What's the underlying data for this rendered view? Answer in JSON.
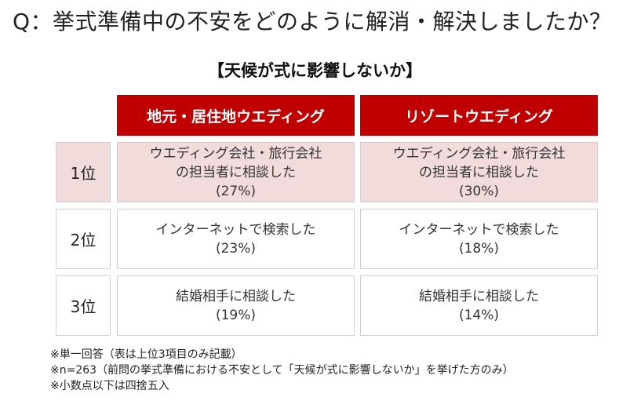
{
  "question": "Q：挙式準備中の不安をどのように解消・解決しましたか？",
  "subtitle": "【天候が式に影響しないか】",
  "chart_data": {
    "type": "table",
    "columns": [
      "地元・居住地ウエディング",
      "リゾートウエディング"
    ],
    "rows": [
      {
        "rank": "1位",
        "cells": [
          {
            "line1": "ウエディング会社・旅行会社",
            "line2": "の担当者に相談した",
            "percent": "(27%)",
            "value": 27
          },
          {
            "line1": "ウエディング会社・旅行会社",
            "line2": "の担当者に相談した",
            "percent": "(30%)",
            "value": 30
          }
        ]
      },
      {
        "rank": "2位",
        "cells": [
          {
            "line1": "インターネットで検索した",
            "percent": "(23%)",
            "value": 23
          },
          {
            "line1": "インターネットで検索した",
            "percent": "(18%)",
            "value": 18
          }
        ]
      },
      {
        "rank": "3位",
        "cells": [
          {
            "line1": "結婚相手に相談した",
            "percent": "(19%)",
            "value": 19
          },
          {
            "line1": "結婚相手に相談した",
            "percent": "(14%)",
            "value": 14
          }
        ]
      }
    ]
  },
  "notes": [
    "※単一回答（表は上位3項目のみ記載）",
    "※n=263（前問の挙式準備における不安として「天候が式に影響しないか」を挙げた方のみ）",
    "※小数点以下は四捨五入"
  ],
  "colors": {
    "header_bg": "#c00000",
    "highlight_bg": "#f2dcdb",
    "border": "#cfcfcf"
  }
}
